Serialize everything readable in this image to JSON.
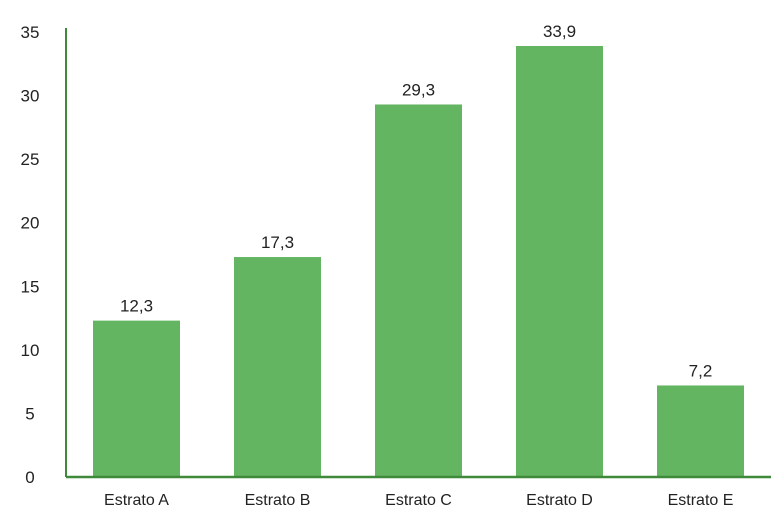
{
  "chart_data": {
    "type": "bar",
    "categories": [
      "Estrato A",
      "Estrato B",
      "Estrato C",
      "Estrato D",
      "Estrato E"
    ],
    "values": [
      12.3,
      17.3,
      29.3,
      33.9,
      7.2
    ],
    "value_labels": [
      "12,3",
      "17,3",
      "29,3",
      "33,9",
      "7,2"
    ],
    "yticks": [
      "0",
      "5",
      "10",
      "15",
      "20",
      "25",
      "30",
      "35"
    ],
    "ylim": [
      0,
      35
    ],
    "grid": false,
    "legend": "none",
    "title": "",
    "xlabel": "",
    "ylabel": ""
  },
  "colors": {
    "bar": "#63b561",
    "axis": "#3f8a3a",
    "text": "#222222"
  }
}
